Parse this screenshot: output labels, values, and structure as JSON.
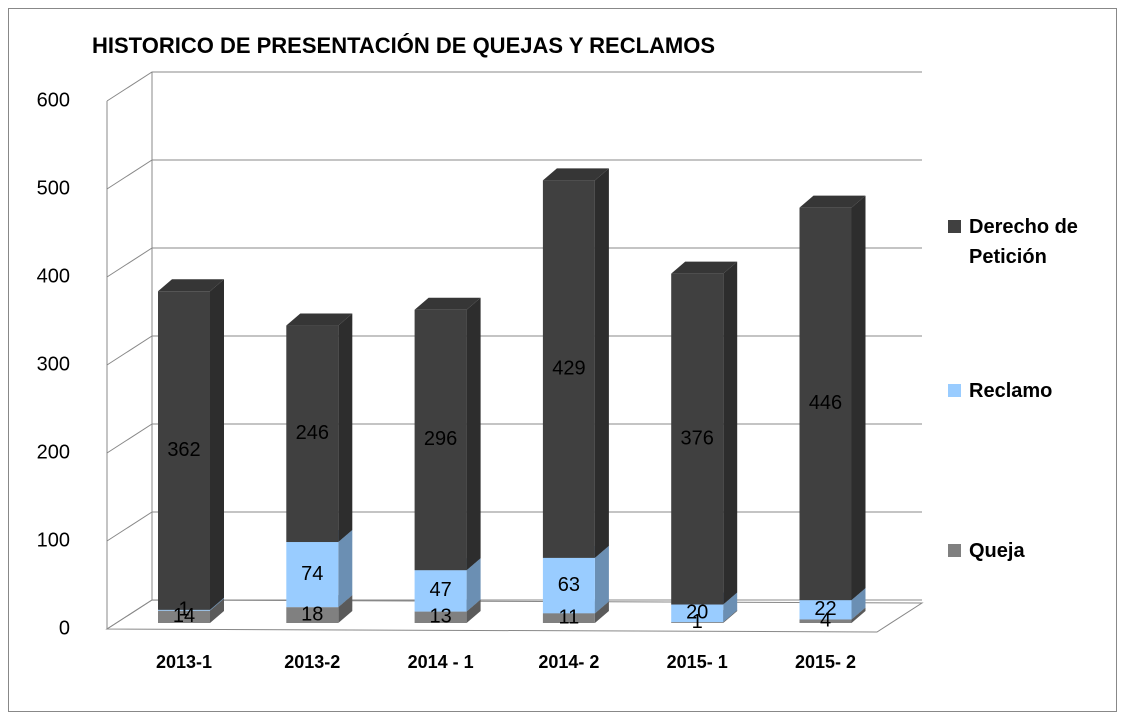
{
  "chart_data": {
    "type": "bar3d_stacked",
    "title": "HISTORICO DE PRESENTACIÓN DE QUEJAS Y RECLAMOS",
    "categories": [
      "2013-1",
      "2013-2",
      "2014 - 1",
      "2014- 2",
      "2015- 1",
      "2015- 2"
    ],
    "series": [
      {
        "name": "Queja",
        "color": "#808080",
        "values": [
          14,
          18,
          13,
          11,
          1,
          4
        ]
      },
      {
        "name": "Reclamo",
        "color": "#99ccff",
        "values": [
          1,
          74,
          47,
          63,
          20,
          22
        ]
      },
      {
        "name": "Derecho de Petición",
        "color": "#404040",
        "values": [
          362,
          246,
          296,
          429,
          376,
          446
        ]
      }
    ],
    "ylim": [
      0,
      600
    ],
    "yticks": [
      0,
      100,
      200,
      300,
      400,
      500,
      600
    ],
    "grid": true,
    "legend": "right"
  }
}
